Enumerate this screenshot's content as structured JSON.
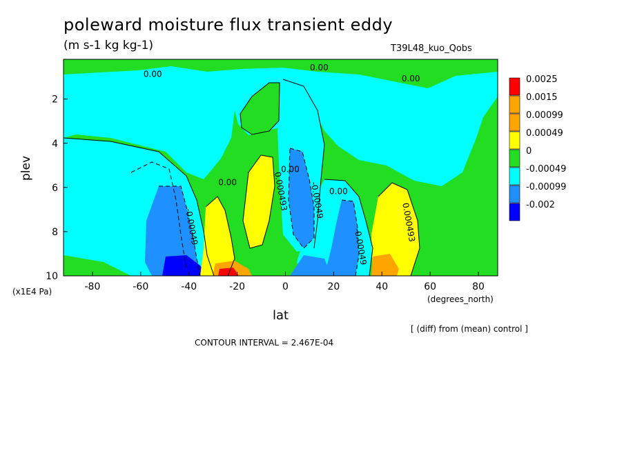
{
  "chart_data": {
    "type": "heatmap",
    "title": "poleward moisture flux transient eddy",
    "units": "(m s-1 kg kg-1)",
    "run_id": "T39L48_kuo_Qobs",
    "xlabel": "lat",
    "x_unit": "(degrees_north)",
    "ylabel": "plev",
    "y_unit": "(x1E4 Pa)",
    "x_ticks": [
      "-80",
      "-60",
      "-40",
      "-20",
      "0",
      "20",
      "40",
      "60",
      "80"
    ],
    "y_ticks": [
      "2",
      "4",
      "6",
      "8",
      "10"
    ],
    "xlim": [
      -92,
      88
    ],
    "ylim": [
      10,
      0.2
    ],
    "note": "[ (diff) from (mean) control ]",
    "contour_interval": "CONTOUR INTERVAL = 2.467E-04",
    "legend": {
      "labels": [
        "0.0025",
        "0.0015",
        "0.00099",
        "0.00049",
        "0",
        "-0.00049",
        "-0.00099",
        "-0.002"
      ],
      "colors": [
        "#ff0000",
        "#ffa500",
        "#ffa500",
        "#ffff00",
        "#22dd22",
        "#00ffff",
        "#1e90ff",
        "#0000ff"
      ]
    },
    "contour_labels": [
      {
        "text": "0.00",
        "lat": -55,
        "plev": 1.0
      },
      {
        "text": "0.00",
        "lat": 14,
        "plev": 0.7
      },
      {
        "text": "0.00",
        "lat": 52,
        "plev": 1.2
      },
      {
        "text": "0.00",
        "lat": -24,
        "plev": 5.9
      },
      {
        "text": "0.00",
        "lat": 2,
        "plev": 5.3
      },
      {
        "text": "0.00",
        "lat": 22,
        "plev": 6.3
      },
      {
        "text": "0.000493",
        "lat": -3,
        "plev": 6.2
      },
      {
        "text": "-0.00049",
        "lat": 12,
        "plev": 6.6
      },
      {
        "text": "-0.00049",
        "lat": 30,
        "plev": 8.7
      },
      {
        "text": "-0.00049",
        "lat": -40,
        "plev": 7.8
      },
      {
        "text": "0.000493",
        "lat": 50,
        "plev": 7.6
      }
    ]
  }
}
